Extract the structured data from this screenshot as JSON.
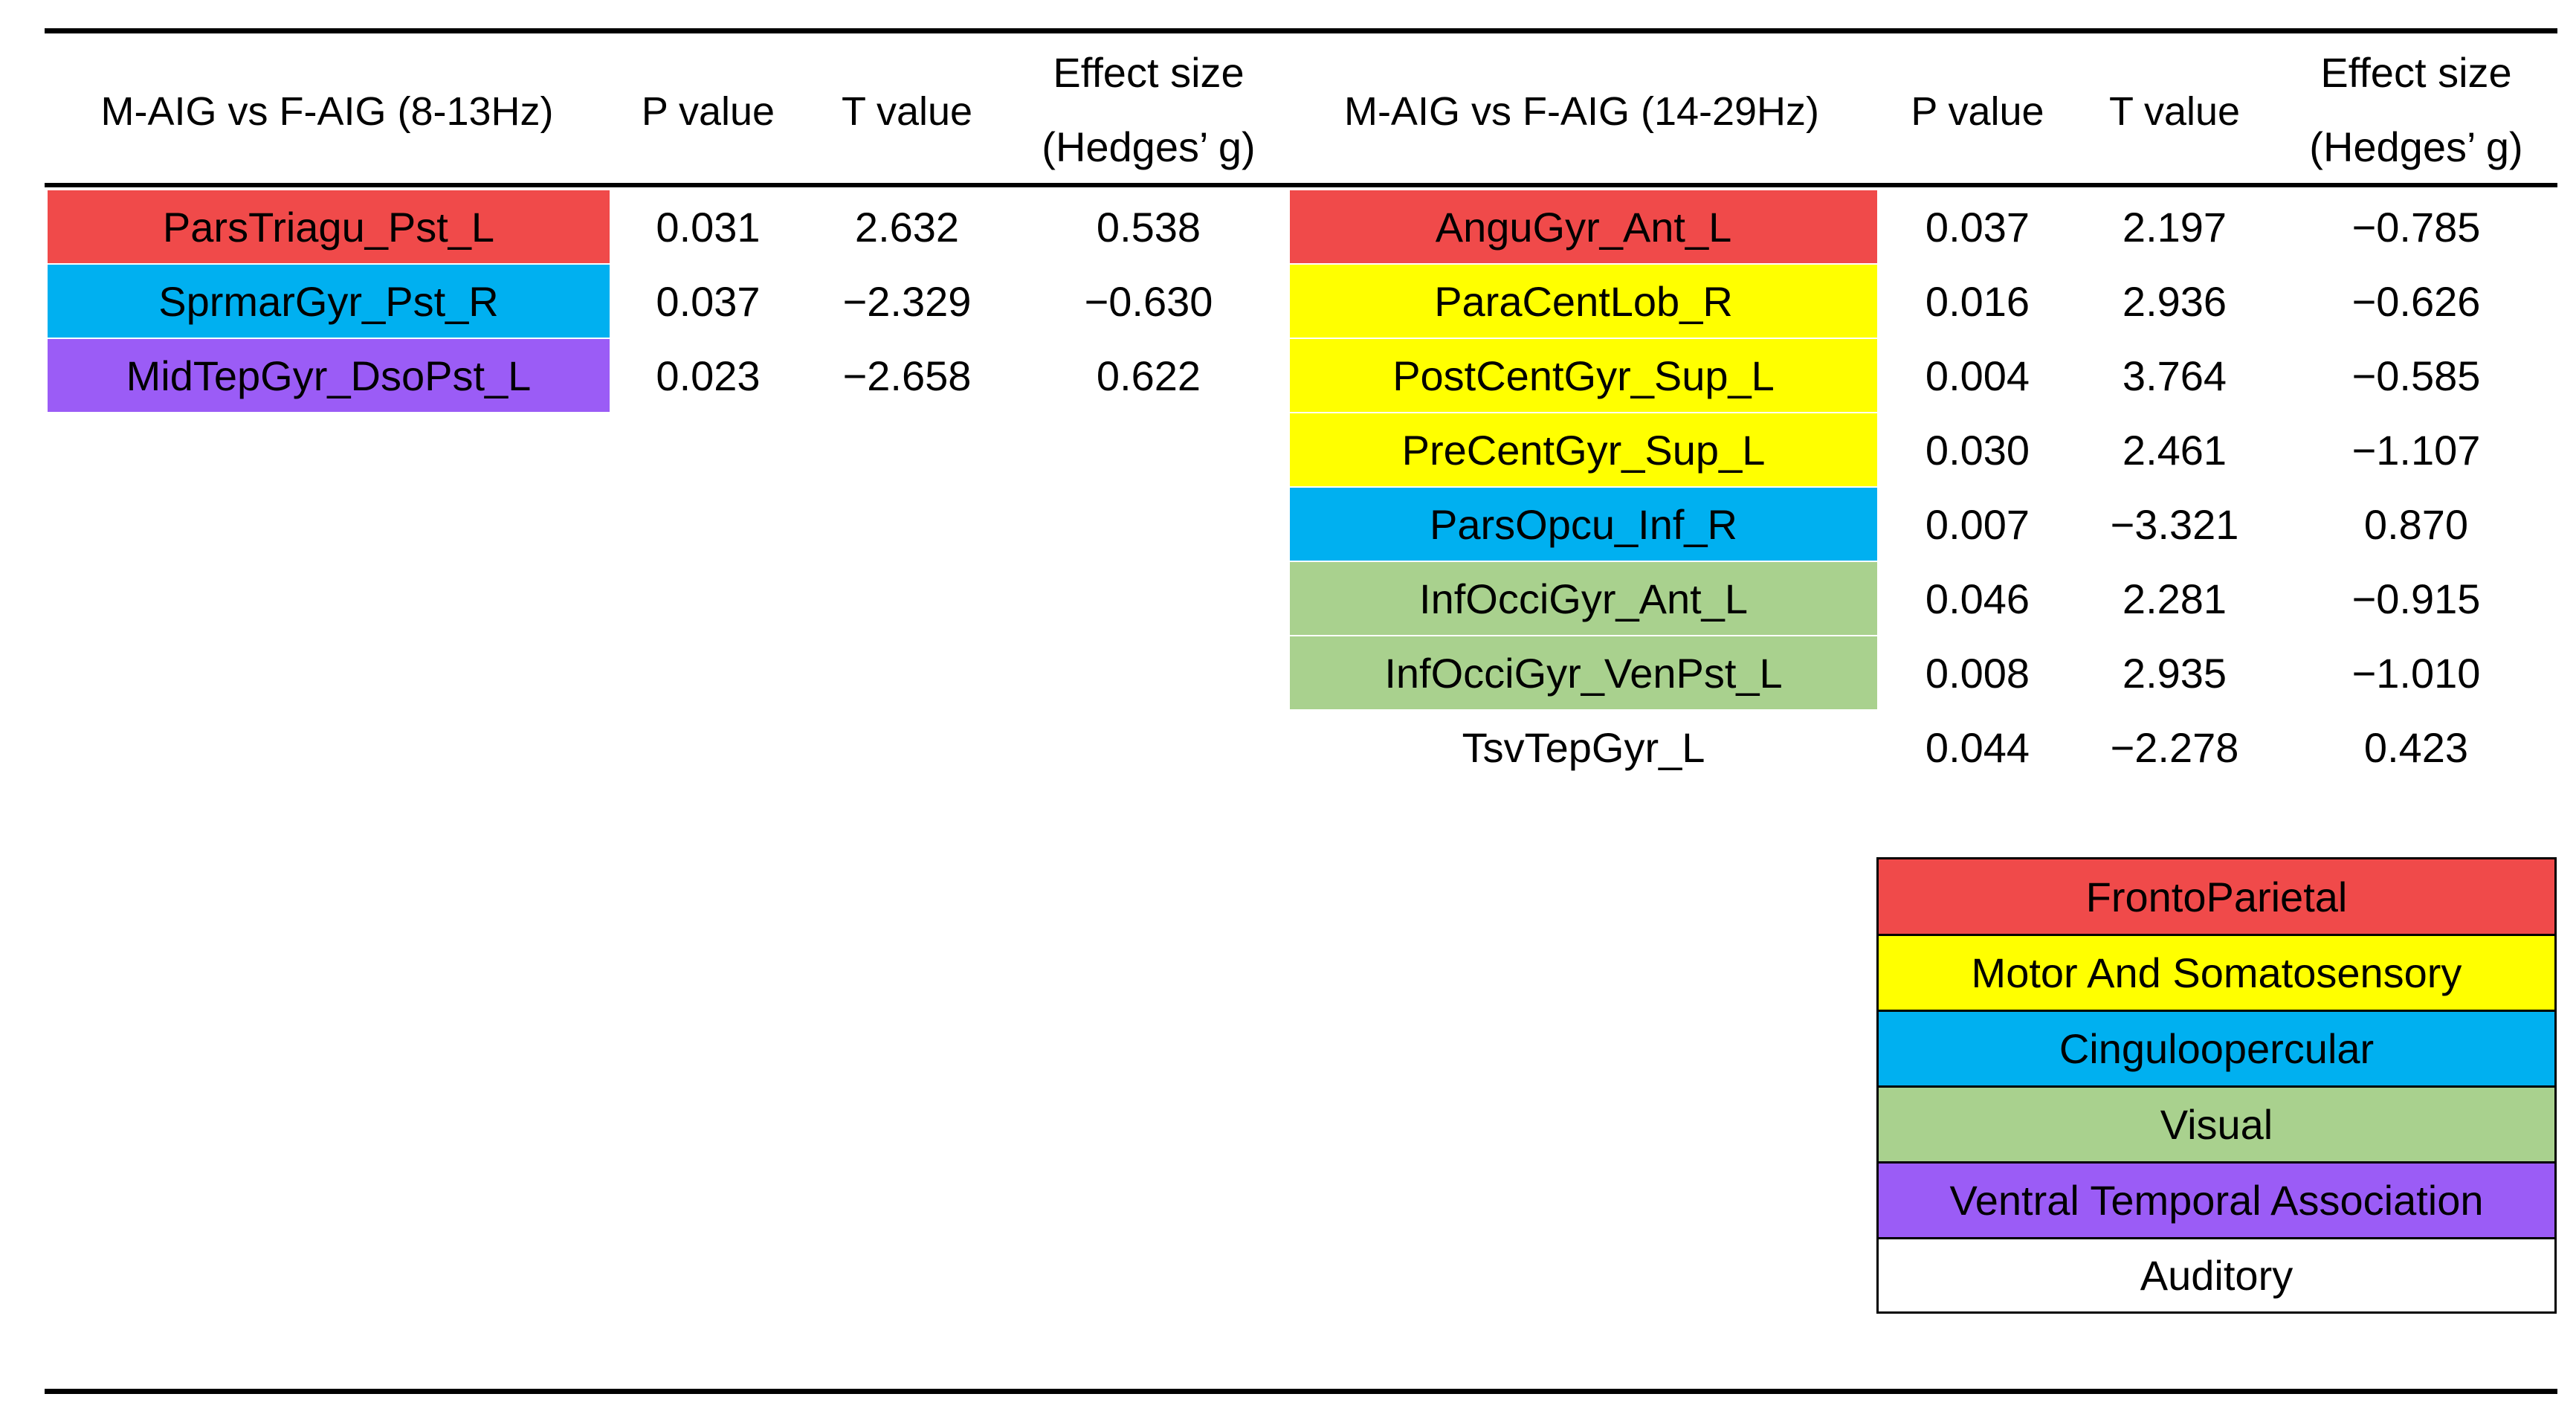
{
  "colors": {
    "FrontoParietal": "#f04a4a",
    "MotorAndSomatosensory": "#ffff00",
    "Cinguloopercular": "#00b0f0",
    "Visual": "#a9d18e",
    "VentralTemporalAssociation": "#9b5cf6",
    "Auditory": "#ffffff"
  },
  "left_table": {
    "headers": {
      "comparison": "M-AIG vs F-AIG (8-13Hz)",
      "p_value": "P value",
      "t_value": "T value",
      "effect_line1": "Effect size",
      "effect_line2": "(Hedges’ g)"
    },
    "rows": [
      {
        "region": "ParsTriagu_Pst_L",
        "network": "FrontoParietal",
        "p": "0.031",
        "t": "2.632",
        "g": "0.538"
      },
      {
        "region": "SprmarGyr_Pst_R",
        "network": "Cinguloopercular",
        "p": "0.037",
        "t": "−2.329",
        "g": "−0.630"
      },
      {
        "region": "MidTepGyr_DsoPst_L",
        "network": "VentralTemporalAssociation",
        "p": "0.023",
        "t": "−2.658",
        "g": "0.622"
      }
    ]
  },
  "right_table": {
    "headers": {
      "comparison": "M-AIG vs F-AIG (14-29Hz)",
      "p_value": "P value",
      "t_value": "T value",
      "effect_line1": "Effect size",
      "effect_line2": "(Hedges’ g)"
    },
    "rows": [
      {
        "region": "AnguGyr_Ant_L",
        "network": "FrontoParietal",
        "p": "0.037",
        "t": "2.197",
        "g": "−0.785"
      },
      {
        "region": "ParaCentLob_R",
        "network": "MotorAndSomatosensory",
        "p": "0.016",
        "t": "2.936",
        "g": "−0.626"
      },
      {
        "region": "PostCentGyr_Sup_L",
        "network": "MotorAndSomatosensory",
        "p": "0.004",
        "t": "3.764",
        "g": "−0.585"
      },
      {
        "region": "PreCentGyr_Sup_L",
        "network": "MotorAndSomatosensory",
        "p": "0.030",
        "t": "2.461",
        "g": "−1.107"
      },
      {
        "region": "ParsOpcu_Inf_R",
        "network": "Cinguloopercular",
        "p": "0.007",
        "t": "−3.321",
        "g": "0.870"
      },
      {
        "region": "InfOcciGyr_Ant_L",
        "network": "Visual",
        "p": "0.046",
        "t": "2.281",
        "g": "−0.915"
      },
      {
        "region": "InfOcciGyr_VenPst_L",
        "network": "Visual",
        "p": "0.008",
        "t": "2.935",
        "g": "−1.010"
      },
      {
        "region": "TsvTepGyr_L",
        "network": "Auditory",
        "p": "0.044",
        "t": "−2.278",
        "g": "0.423"
      }
    ]
  },
  "legend": [
    {
      "label": "FrontoParietal",
      "network": "FrontoParietal"
    },
    {
      "label": "Motor And Somatosensory",
      "network": "MotorAndSomatosensory"
    },
    {
      "label": "Cinguloopercular",
      "network": "Cinguloopercular"
    },
    {
      "label": "Visual",
      "network": "Visual"
    },
    {
      "label": "Ventral Temporal Association",
      "network": "VentralTemporalAssociation"
    },
    {
      "label": "Auditory",
      "network": "Auditory"
    }
  ]
}
